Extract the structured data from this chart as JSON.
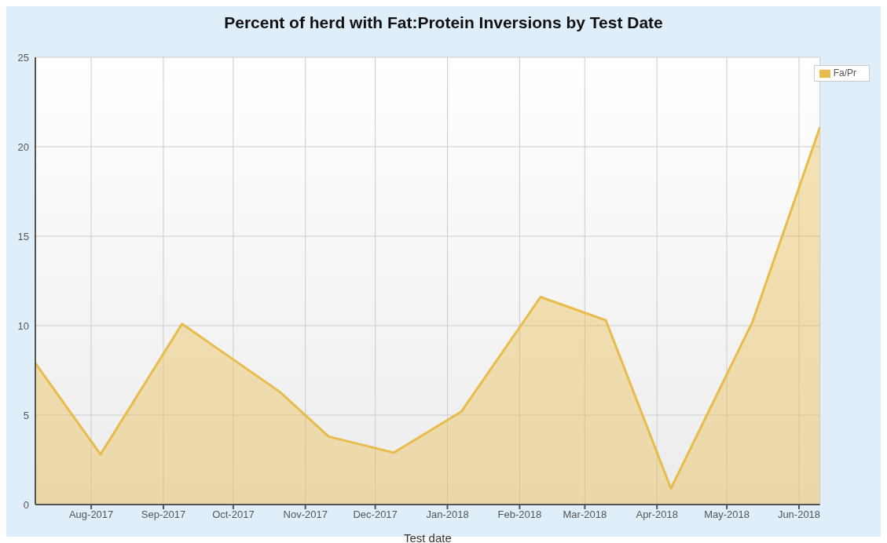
{
  "chart_data": {
    "type": "area",
    "title": "Percent of herd with Fat:Protein Inversions by Test Date",
    "xlabel": "Test date",
    "x": [
      "2017-07-08",
      "2017-08-05",
      "2017-09-09",
      "2017-10-21",
      "2017-11-11",
      "2017-12-09",
      "2018-01-07",
      "2018-02-10",
      "2018-03-10",
      "2018-04-07",
      "2018-05-12",
      "2018-06-10"
    ],
    "series": [
      {
        "name": "Fa/Pr",
        "color": "#e8bc4c",
        "values": [
          7.9,
          2.8,
          10.1,
          6.3,
          3.8,
          2.9,
          5.2,
          11.6,
          10.3,
          0.9,
          10.2,
          21.1
        ]
      }
    ],
    "xlim": [
      "2017-07-08",
      "2018-06-10"
    ],
    "xticks": [
      {
        "value": "2017-08-01",
        "label": "Aug-2017"
      },
      {
        "value": "2017-09-01",
        "label": "Sep-2017"
      },
      {
        "value": "2017-10-01",
        "label": "Oct-2017"
      },
      {
        "value": "2017-11-01",
        "label": "Nov-2017"
      },
      {
        "value": "2017-12-01",
        "label": "Dec-2017"
      },
      {
        "value": "2018-01-01",
        "label": "Jan-2018"
      },
      {
        "value": "2018-02-01",
        "label": "Feb-2018"
      },
      {
        "value": "2018-03-01",
        "label": "Mar-2018"
      },
      {
        "value": "2018-04-01",
        "label": "Apr-2018"
      },
      {
        "value": "2018-05-01",
        "label": "May-2018"
      },
      {
        "value": "2018-06-01",
        "label": "Jun-2018"
      }
    ],
    "ylim": [
      0,
      25
    ],
    "yticks": [
      0,
      5,
      10,
      15,
      20,
      25
    ],
    "grid": true,
    "legend": "top right",
    "marker": "none"
  }
}
